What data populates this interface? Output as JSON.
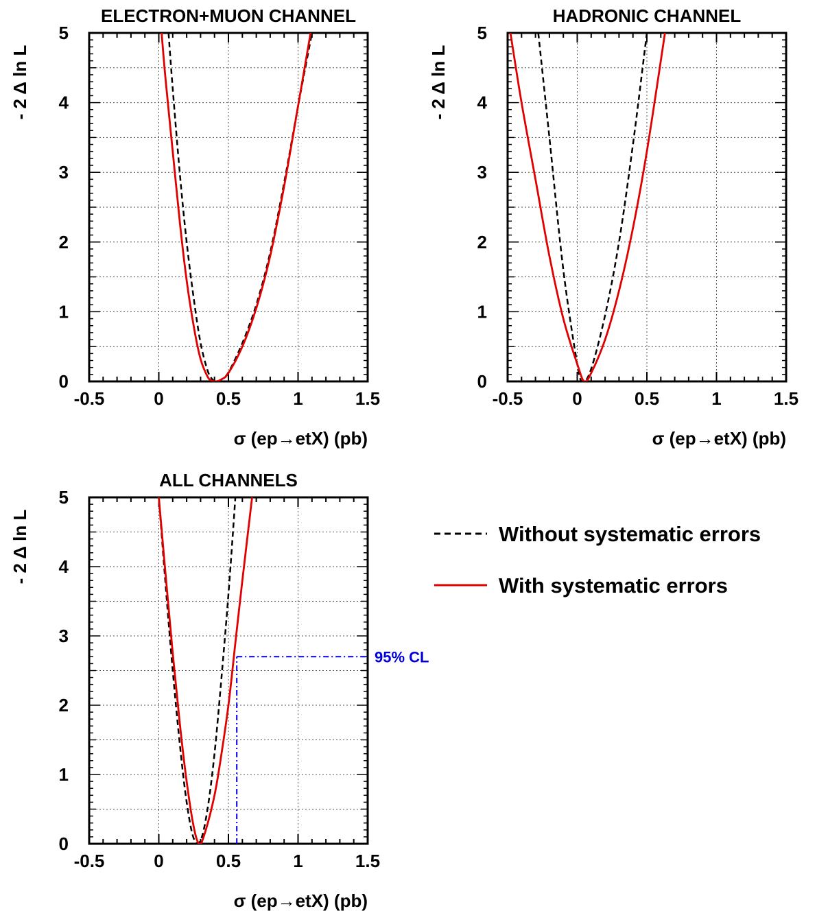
{
  "colors": {
    "without": "#000000",
    "with": "#e00000",
    "cl": "#0000dd",
    "grid": "#555555"
  },
  "chart_data": [
    {
      "type": "line",
      "title": "ELECTRON+MUON CHANNEL",
      "xlabel": "σ (ep→etX)  (pb)",
      "ylabel": "- 2 Δ ln L",
      "xlim": [
        -0.5,
        1.5
      ],
      "ylim": [
        0,
        5
      ],
      "xticks": [
        -0.5,
        0,
        0.5,
        1,
        1.5
      ],
      "xtick_labels": [
        "-0.5",
        "0",
        "0.5",
        "1",
        "1.5"
      ],
      "yticks": [
        0,
        1,
        2,
        3,
        4,
        5
      ],
      "ytick_labels": [
        "0",
        "1",
        "2",
        "3",
        "4",
        "5"
      ],
      "grid": true,
      "series": [
        {
          "name": "Without systematic errors",
          "style": "dashed",
          "x": [
            0.07,
            0.1,
            0.15,
            0.2,
            0.25,
            0.3,
            0.35,
            0.38,
            0.41,
            0.45,
            0.5,
            0.6,
            0.7,
            0.8,
            0.9,
            1.0,
            1.1
          ],
          "y": [
            5.0,
            4.2,
            3.0,
            2.0,
            1.2,
            0.55,
            0.16,
            0.04,
            0.0,
            0.03,
            0.13,
            0.55,
            1.1,
            1.85,
            2.85,
            3.95,
            5.0
          ]
        },
        {
          "name": "With systematic errors",
          "style": "solid",
          "x": [
            0.02,
            0.05,
            0.1,
            0.15,
            0.2,
            0.25,
            0.3,
            0.35,
            0.38,
            0.41,
            0.45,
            0.5,
            0.6,
            0.7,
            0.8,
            0.9,
            1.0,
            1.09
          ],
          "y": [
            5.0,
            4.3,
            3.3,
            2.3,
            1.45,
            0.8,
            0.32,
            0.07,
            0.01,
            0.0,
            0.03,
            0.12,
            0.5,
            1.05,
            1.8,
            2.8,
            3.95,
            5.0
          ]
        }
      ]
    },
    {
      "type": "line",
      "title": "HADRONIC CHANNEL",
      "xlabel": "σ (ep→etX)  (pb)",
      "ylabel": "- 2 Δ ln L",
      "xlim": [
        -0.5,
        1.5
      ],
      "ylim": [
        0,
        5
      ],
      "xticks": [
        -0.5,
        0,
        0.5,
        1,
        1.5
      ],
      "xtick_labels": [
        "-0.5",
        "0",
        "0.5",
        "1",
        "1.5"
      ],
      "yticks": [
        0,
        1,
        2,
        3,
        4,
        5
      ],
      "ytick_labels": [
        "0",
        "1",
        "2",
        "3",
        "4",
        "5"
      ],
      "grid": true,
      "series": [
        {
          "name": "Without systematic errors",
          "style": "dashed",
          "x": [
            -0.28,
            -0.2,
            -0.1,
            0.0,
            0.04,
            0.1,
            0.2,
            0.3,
            0.4,
            0.5
          ],
          "y": [
            5.0,
            3.5,
            1.6,
            0.25,
            0.0,
            0.18,
            0.95,
            2.0,
            3.4,
            5.0
          ],
          "smooth": true
        },
        {
          "name": "With systematic errors",
          "style": "solid",
          "x": [
            -0.48,
            -0.4,
            -0.3,
            -0.2,
            -0.1,
            0.0,
            0.05,
            0.1,
            0.2,
            0.3,
            0.4,
            0.5,
            0.63
          ],
          "y": [
            5.0,
            4.0,
            2.9,
            1.8,
            0.9,
            0.25,
            0.0,
            0.12,
            0.6,
            1.3,
            2.2,
            3.3,
            5.0
          ]
        }
      ]
    },
    {
      "type": "line",
      "title": "ALL CHANNELS",
      "xlabel": "σ (ep→etX)  (pb)",
      "ylabel": "- 2 Δ ln L",
      "xlim": [
        -0.5,
        1.5
      ],
      "ylim": [
        0,
        5
      ],
      "xticks": [
        -0.5,
        0,
        0.5,
        1,
        1.5
      ],
      "xtick_labels": [
        "-0.5",
        "0",
        "0.5",
        "1",
        "1.5"
      ],
      "yticks": [
        0,
        1,
        2,
        3,
        4,
        5
      ],
      "ytick_labels": [
        "0",
        "1",
        "2",
        "3",
        "4",
        "5"
      ],
      "grid": true,
      "series": [
        {
          "name": "Without systematic errors",
          "style": "dashed",
          "x": [
            0.0,
            0.05,
            0.1,
            0.15,
            0.2,
            0.25,
            0.3,
            0.35,
            0.4,
            0.45,
            0.5,
            0.55
          ],
          "y": [
            5.0,
            3.7,
            2.5,
            1.45,
            0.6,
            0.08,
            0.05,
            0.5,
            1.3,
            2.4,
            3.6,
            5.0
          ]
        },
        {
          "name": "With systematic errors",
          "style": "solid",
          "x": [
            0.0,
            0.05,
            0.1,
            0.15,
            0.2,
            0.25,
            0.29,
            0.33,
            0.4,
            0.45,
            0.5,
            0.55,
            0.6,
            0.67
          ],
          "y": [
            5.0,
            3.85,
            2.75,
            1.75,
            0.9,
            0.25,
            0.0,
            0.15,
            0.7,
            1.3,
            2.0,
            2.9,
            3.8,
            5.0
          ]
        }
      ],
      "annotation": {
        "label": "95% CL",
        "x": 0.56,
        "y": 2.7
      }
    }
  ],
  "legend": {
    "entries": [
      {
        "label": "Without systematic errors",
        "style": "dashed"
      },
      {
        "label": "With systematic errors",
        "style": "solid"
      }
    ]
  }
}
